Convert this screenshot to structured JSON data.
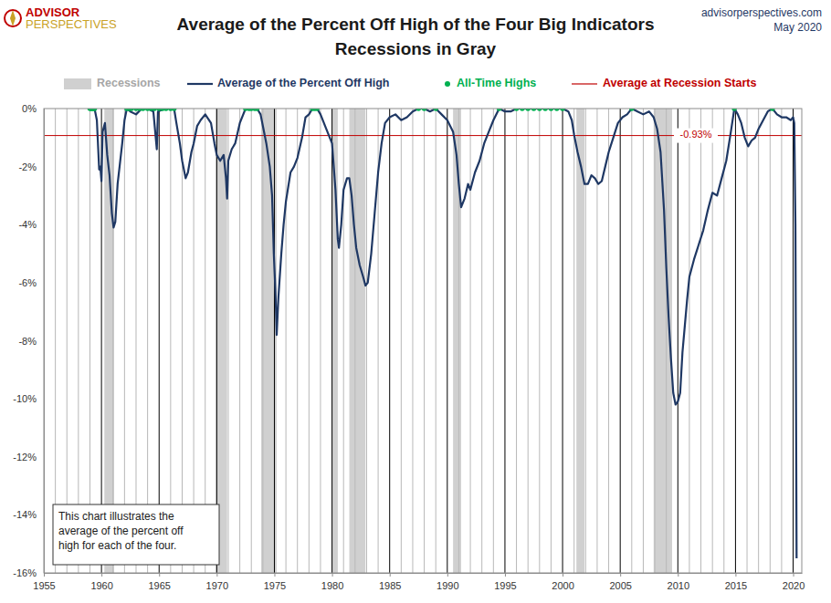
{
  "chart_data": {
    "type": "line",
    "title": "Average of the Percent Off High of the Four Big Indicators",
    "subtitle": "Recessions in Gray",
    "logo": {
      "line1": "ADVISOR",
      "line2": "PERSPECTIVES"
    },
    "source": "advisorperspectives.com",
    "date": "May 2020",
    "note": [
      "This chart illustrates the",
      "average of the percent off",
      "high for each of the four."
    ],
    "legend": "top",
    "grid": true,
    "xlim": [
      1955,
      2020.75
    ],
    "xticks": [
      1955,
      1960,
      1965,
      1970,
      1975,
      1980,
      1985,
      1990,
      1995,
      2000,
      2005,
      2010,
      2015,
      2020
    ],
    "minor_xticks": [
      1956,
      1957,
      1958,
      1959,
      1961,
      1962,
      1963,
      1964,
      1966,
      1967,
      1968,
      1969,
      1971,
      1972,
      1973,
      1974,
      1976,
      1977,
      1978,
      1979,
      1981,
      1982,
      1983,
      1984,
      1986,
      1987,
      1988,
      1989,
      1991,
      1992,
      1993,
      1994,
      1996,
      1997,
      1998,
      1999,
      2001,
      2002,
      2003,
      2004,
      2006,
      2007,
      2008,
      2009,
      2011,
      2012,
      2013,
      2014,
      2016,
      2017,
      2018,
      2019
    ],
    "ylim": [
      -16,
      0
    ],
    "yticks": [
      {
        "value": -16,
        "label": "-16%"
      },
      {
        "value": -14,
        "label": "-14%"
      },
      {
        "value": -12,
        "label": "-12%"
      },
      {
        "value": -10,
        "label": "-10%"
      },
      {
        "value": -8,
        "label": "-8%"
      },
      {
        "value": -6,
        "label": "-6%"
      },
      {
        "value": -4,
        "label": "-4%"
      },
      {
        "value": -2,
        "label": "-2%"
      },
      {
        "value": 0,
        "label": "0%"
      }
    ],
    "recessions_label": "Recessions",
    "recessions_color": "#d0d0d0",
    "recessions": [
      [
        1960.25,
        1961.1
      ],
      [
        1969.9,
        1970.9
      ],
      [
        1973.85,
        1975.2
      ],
      [
        1980.0,
        1980.5
      ],
      [
        1981.5,
        1982.9
      ],
      [
        1990.5,
        1991.2
      ],
      [
        2001.2,
        2001.9
      ],
      [
        2007.9,
        2009.5
      ]
    ],
    "reference_line": {
      "name": "Average at Recession Starts",
      "value": -0.93,
      "label": "-0.93%",
      "color": "#c00000"
    },
    "series": [
      {
        "name": "Average of the Percent Off High",
        "type": "line",
        "color": "#1f3864",
        "x": [
          1959.0,
          1959.4,
          1959.6,
          1959.8,
          1959.9,
          1960.0,
          1960.1,
          1960.3,
          1960.5,
          1960.7,
          1960.9,
          1961.05,
          1961.2,
          1961.4,
          1961.6,
          1961.8,
          1962.0,
          1962.2,
          1962.5,
          1963.0,
          1963.5,
          1964.0,
          1964.5,
          1964.8,
          1964.9,
          1965.5,
          1966.0,
          1966.3,
          1966.5,
          1966.8,
          1967.0,
          1967.3,
          1967.5,
          1967.8,
          1968.0,
          1968.3,
          1968.6,
          1969.0,
          1969.5,
          1969.8,
          1970.0,
          1970.3,
          1970.6,
          1970.8,
          1970.9,
          1971.0,
          1971.3,
          1971.6,
          1972.0,
          1972.5,
          1973.0,
          1973.5,
          1973.8,
          1974.0,
          1974.3,
          1974.6,
          1974.8,
          1974.95,
          1975.1,
          1975.2,
          1975.35,
          1975.6,
          1975.8,
          1976.0,
          1976.4,
          1976.7,
          1977.0,
          1977.4,
          1977.7,
          1978.0,
          1978.3,
          1978.7,
          1979.0,
          1979.4,
          1979.7,
          1980.0,
          1980.3,
          1980.5,
          1980.6,
          1980.8,
          1981.0,
          1981.3,
          1981.5,
          1981.7,
          1981.9,
          1982.1,
          1982.4,
          1982.7,
          1982.9,
          1983.1,
          1983.4,
          1983.7,
          1984.0,
          1984.3,
          1984.6,
          1985.0,
          1985.5,
          1986.0,
          1986.5,
          1987.0,
          1987.5,
          1988.0,
          1988.5,
          1989.0,
          1989.5,
          1990.0,
          1990.5,
          1990.8,
          1991.0,
          1991.2,
          1991.5,
          1991.8,
          1992.0,
          1992.4,
          1992.8,
          1993.2,
          1993.6,
          1994.0,
          1994.5,
          1995.0,
          1995.5,
          1996.0,
          1997.0,
          1998.0,
          1999.0,
          2000.0,
          2000.5,
          2000.8,
          2001.0,
          2001.3,
          2001.6,
          2001.9,
          2002.2,
          2002.5,
          2002.8,
          2003.1,
          2003.4,
          2003.7,
          2004.0,
          2004.4,
          2004.8,
          2005.2,
          2005.6,
          2006.0,
          2006.5,
          2007.0,
          2007.5,
          2007.9,
          2008.2,
          2008.5,
          2008.8,
          2009.0,
          2009.2,
          2009.4,
          2009.6,
          2009.8,
          2010.0,
          2010.2,
          2010.4,
          2010.6,
          2010.8,
          2011.0,
          2011.4,
          2011.8,
          2012.2,
          2012.6,
          2013.0,
          2013.4,
          2013.8,
          2014.2,
          2014.6,
          2014.9,
          2015.2,
          2015.5,
          2015.8,
          2016.1,
          2016.4,
          2016.7,
          2017.0,
          2017.4,
          2017.8,
          2018.2,
          2018.6,
          2019.0,
          2019.4,
          2019.8,
          2020.0,
          2020.1,
          2020.2,
          2020.3
        ],
        "values": [
          0,
          0,
          -0.4,
          -2.1,
          -2.0,
          -2.5,
          -0.8,
          -0.5,
          -1.6,
          -2.3,
          -3.6,
          -4.1,
          -3.9,
          -2.6,
          -1.9,
          -1.2,
          -0.4,
          0,
          -0.1,
          -0.2,
          0,
          0,
          -0.1,
          -1.4,
          -0.1,
          0,
          0,
          0,
          -0.5,
          -1.2,
          -1.8,
          -2.4,
          -2.2,
          -1.5,
          -1.2,
          -0.6,
          -0.4,
          -0.2,
          -0.5,
          -1.2,
          -1.6,
          -1.8,
          -1.6,
          -2.4,
          -3.1,
          -1.8,
          -1.4,
          -1.2,
          -0.5,
          0,
          0,
          0,
          -0.2,
          -0.6,
          -1.2,
          -2.0,
          -3.0,
          -5.0,
          -6.4,
          -7.8,
          -6.5,
          -5.0,
          -4.0,
          -3.2,
          -2.2,
          -2.0,
          -1.7,
          -1.0,
          -0.3,
          -0.2,
          0,
          0,
          -0.2,
          -0.6,
          -0.9,
          -1.2,
          -2.8,
          -4.5,
          -4.8,
          -4.0,
          -2.8,
          -2.4,
          -2.4,
          -3.0,
          -4.0,
          -4.8,
          -5.4,
          -5.8,
          -6.1,
          -6.0,
          -5.0,
          -3.6,
          -2.2,
          -1.2,
          -0.5,
          -0.3,
          -0.2,
          -0.4,
          -0.3,
          -0.1,
          0,
          0,
          -0.1,
          0,
          -0.2,
          -0.4,
          -0.8,
          -1.6,
          -2.6,
          -3.4,
          -3.1,
          -2.6,
          -2.8,
          -2.2,
          -1.8,
          -1.2,
          -0.8,
          -0.4,
          0,
          -0.1,
          -0.1,
          0,
          0,
          0,
          0,
          0,
          -0.1,
          -0.4,
          -0.9,
          -1.5,
          -2.0,
          -2.6,
          -2.6,
          -2.3,
          -2.4,
          -2.6,
          -2.5,
          -2.0,
          -1.5,
          -1.0,
          -0.5,
          -0.3,
          -0.2,
          0,
          -0.1,
          -0.2,
          -0.1,
          -0.3,
          -0.7,
          -1.5,
          -3.5,
          -5.5,
          -7.2,
          -8.6,
          -9.8,
          -10.2,
          -10.1,
          -9.8,
          -8.4,
          -7.5,
          -6.6,
          -5.8,
          -5.2,
          -4.7,
          -4.2,
          -3.5,
          -2.9,
          -3.0,
          -2.4,
          -1.8,
          -0.8,
          0,
          -0.2,
          -0.5,
          -1.0,
          -1.3,
          -1.1,
          -1.0,
          -0.7,
          -0.4,
          -0.1,
          0,
          -0.2,
          -0.3,
          -0.3,
          -0.4,
          -0.3,
          -0.5,
          -4.0,
          -15.5
        ]
      },
      {
        "name": "All-Time Highs",
        "type": "scatter",
        "marker": "circle",
        "color": "#00b050",
        "x": [
          1959.0,
          1959.1,
          1959.2,
          1959.3,
          1959.4,
          1962.2,
          1962.4,
          1962.6,
          1963.0,
          1963.3,
          1963.6,
          1964.0,
          1964.3,
          1964.6,
          1965.0,
          1965.3,
          1965.6,
          1966.0,
          1966.3,
          1972.5,
          1972.8,
          1973.0,
          1973.3,
          1973.5,
          1978.3,
          1978.5,
          1978.7,
          1987.5,
          1988.0,
          1989.0,
          1994.5,
          1996.0,
          1996.5,
          1997.0,
          1997.5,
          1998.0,
          1998.5,
          1999.0,
          1999.5,
          2000.0,
          2006.0,
          2014.9,
          2018.2
        ],
        "values": [
          0,
          0,
          0,
          0,
          0,
          0,
          0,
          0,
          0,
          0,
          0,
          0,
          0,
          0,
          0,
          0,
          0,
          0,
          0,
          0,
          0,
          0,
          0,
          0,
          0,
          0,
          0,
          0,
          0,
          0,
          0,
          0,
          0,
          0,
          0,
          0,
          0,
          0,
          0,
          0,
          0,
          0,
          0
        ]
      }
    ]
  }
}
